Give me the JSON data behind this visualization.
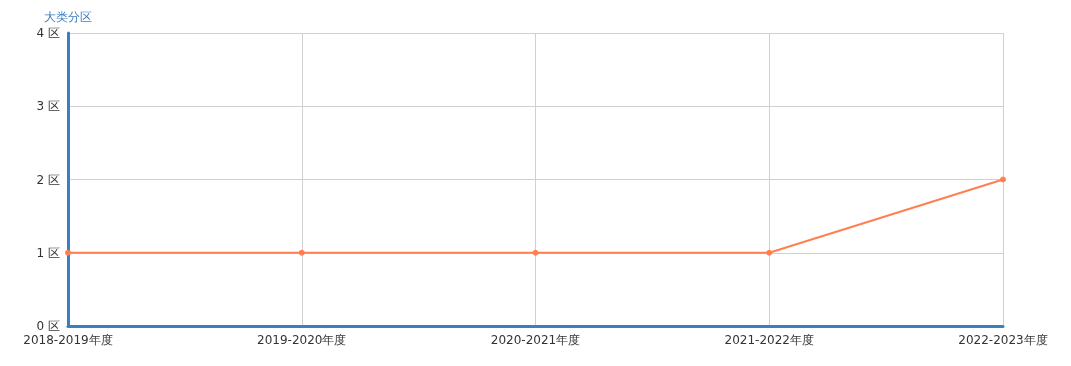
{
  "chart_data": {
    "type": "line",
    "ylabel": "大类分区",
    "categories": [
      "2018-2019年度",
      "2019-2020年度",
      "2020-2021年度",
      "2021-2022年度",
      "2022-2023年度"
    ],
    "series": [
      {
        "color": "#ff7f50",
        "values": [
          1,
          1,
          1,
          1,
          2
        ]
      }
    ],
    "ylim": [
      0,
      4
    ],
    "yticks": [
      {
        "value": 0,
        "label": "0 区"
      },
      {
        "value": 1,
        "label": "1 区"
      },
      {
        "value": 2,
        "label": "2 区"
      },
      {
        "value": 3,
        "label": "3 区"
      },
      {
        "value": 4,
        "label": "4 区"
      }
    ],
    "grid": true,
    "marker": "circle",
    "line_style": "solid"
  }
}
